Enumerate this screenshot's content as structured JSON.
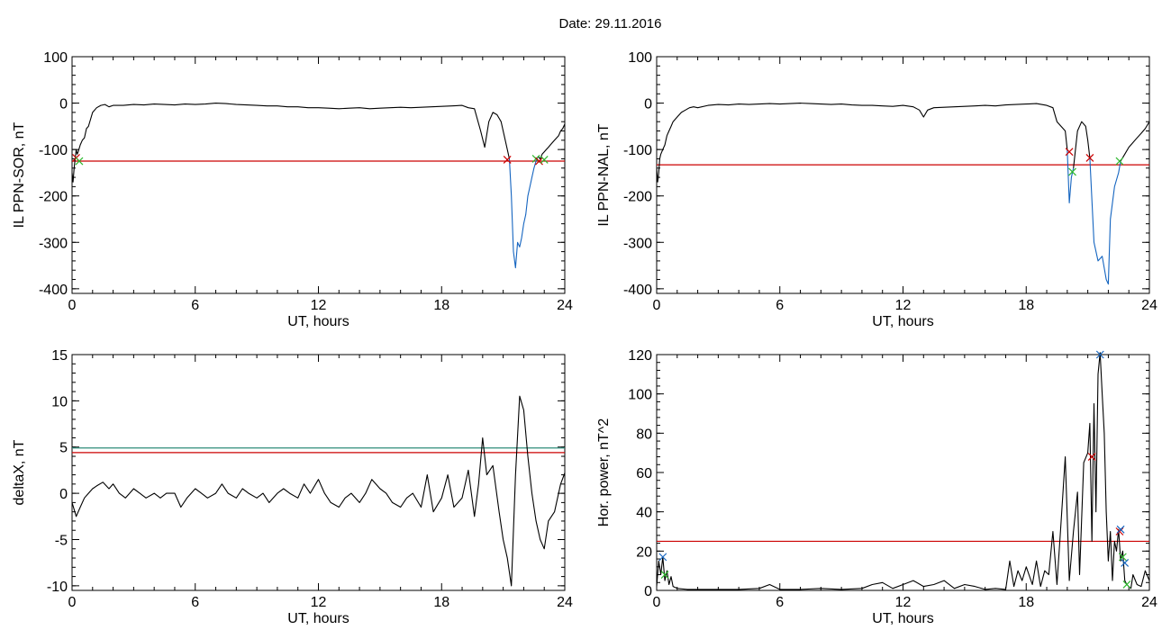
{
  "figure_title": "Date:  29.11.2016",
  "chart_data": [
    {
      "type": "line",
      "ylabel": "IL PPN-SOR, nT",
      "xlabel": "UT, hours",
      "xlim": [
        0,
        24
      ],
      "ylim": [
        -410,
        100
      ],
      "xticks": [
        0,
        6,
        12,
        18,
        24
      ],
      "yticks": [
        100,
        0,
        -100,
        -200,
        -300,
        -400
      ],
      "threshold": -125,
      "series": [
        {
          "color": "#000000",
          "x": [
            0,
            0.05,
            0.1,
            0.15,
            0.2,
            0.25,
            0.3,
            0.4,
            0.5,
            0.6,
            0.7,
            0.8,
            0.9,
            1.0,
            1.2,
            1.4,
            1.6,
            1.8,
            2.0,
            2.5,
            3.0,
            3.5,
            4.0,
            4.5,
            5.0,
            5.5,
            6.0,
            6.5,
            7.0,
            7.5,
            8.0,
            8.5,
            9.0,
            9.5,
            10.0,
            10.5,
            11.0,
            11.5,
            12.0,
            12.5,
            13.0,
            13.5,
            14.0,
            14.5,
            15.0,
            15.5,
            16.0,
            16.5,
            17.0,
            17.5,
            18.0,
            18.5,
            19.0,
            19.3,
            19.6,
            19.9,
            20.1,
            20.3,
            20.5,
            20.7,
            20.9,
            21.1,
            21.3
          ],
          "y": [
            -150,
            -170,
            -140,
            -120,
            -100,
            -110,
            -105,
            -90,
            -80,
            -75,
            -55,
            -50,
            -35,
            -20,
            -10,
            -5,
            -3,
            -8,
            -5,
            -5,
            -3,
            -4,
            -2,
            -3,
            -4,
            -2,
            -3,
            -2,
            0,
            -1,
            -3,
            -4,
            -5,
            -6,
            -6,
            -8,
            -8,
            -10,
            -10,
            -11,
            -12,
            -11,
            -10,
            -12,
            -11,
            -10,
            -9,
            -10,
            -9,
            -8,
            -7,
            -6,
            -5,
            -10,
            -12,
            -60,
            -95,
            -40,
            -20,
            -25,
            -40,
            -80,
            -120
          ]
        },
        {
          "color": "#1565c0",
          "x": [
            21.3,
            21.4,
            21.5,
            21.6,
            21.7,
            21.8,
            21.9,
            22.0,
            22.1,
            22.2,
            22.3,
            22.4,
            22.5,
            22.6,
            22.7
          ],
          "y": [
            -120,
            -200,
            -320,
            -355,
            -300,
            -310,
            -290,
            -260,
            -240,
            -200,
            -180,
            -160,
            -140,
            -125,
            -115
          ]
        },
        {
          "color": "#000000",
          "x": [
            22.7,
            22.8,
            22.9,
            23.0,
            23.1,
            23.2,
            23.3,
            23.4,
            23.5,
            23.6,
            23.7,
            23.8,
            23.9,
            24.0
          ],
          "y": [
            -115,
            -120,
            -110,
            -105,
            -100,
            -95,
            -90,
            -85,
            -80,
            -75,
            -70,
            -60,
            -55,
            -45
          ]
        }
      ],
      "markers": [
        {
          "x": 0.2,
          "y": -118,
          "color": "#cc0000"
        },
        {
          "x": 0.35,
          "y": -125,
          "color": "#2eb82e"
        },
        {
          "x": 21.2,
          "y": -122,
          "color": "#cc0000"
        },
        {
          "x": 22.6,
          "y": -120,
          "color": "#2eb82e"
        },
        {
          "x": 22.75,
          "y": -125,
          "color": "#cc0000"
        },
        {
          "x": 23.0,
          "y": -122,
          "color": "#2eb82e"
        }
      ]
    },
    {
      "type": "line",
      "ylabel": "IL PPN-NAL, nT",
      "xlabel": "UT, hours",
      "xlim": [
        0,
        24
      ],
      "ylim": [
        -410,
        100
      ],
      "xticks": [
        0,
        6,
        12,
        18,
        24
      ],
      "yticks": [
        100,
        0,
        -100,
        -200,
        -300,
        -400
      ],
      "threshold": -133,
      "series": [
        {
          "color": "#000000",
          "x": [
            0,
            0.05,
            0.1,
            0.15,
            0.2,
            0.3,
            0.4,
            0.5,
            0.6,
            0.7,
            0.8,
            1.0,
            1.2,
            1.4,
            1.6,
            1.8,
            2.0,
            2.5,
            3.0,
            3.5,
            4.0,
            4.5,
            5.0,
            5.5,
            6.0,
            6.5,
            7.0,
            7.5,
            8.0,
            8.5,
            9.0,
            9.5,
            10.0,
            10.5,
            11.0,
            11.5,
            12.0,
            12.5,
            12.8,
            13.0,
            13.2,
            13.5,
            14.0,
            14.5,
            15.0,
            15.5,
            16.0,
            16.5,
            17.0,
            17.5,
            18.0,
            18.5,
            19.0,
            19.3,
            19.5,
            19.7,
            19.9,
            20.0
          ],
          "y": [
            -140,
            -170,
            -150,
            -120,
            -110,
            -100,
            -90,
            -70,
            -60,
            -50,
            -40,
            -30,
            -20,
            -15,
            -10,
            -8,
            -10,
            -5,
            -3,
            -4,
            -2,
            -3,
            -2,
            -1,
            -2,
            -1,
            0,
            -1,
            -2,
            -3,
            -2,
            -4,
            -5,
            -5,
            -6,
            -7,
            -5,
            -8,
            -15,
            -30,
            -15,
            -10,
            -9,
            -8,
            -7,
            -6,
            -5,
            -6,
            -4,
            -3,
            -2,
            -1,
            -5,
            -10,
            -40,
            -50,
            -60,
            -100
          ]
        },
        {
          "color": "#1565c0",
          "x": [
            20.0,
            20.1,
            20.2,
            20.3
          ],
          "y": [
            -100,
            -215,
            -160,
            -140
          ]
        },
        {
          "color": "#000000",
          "x": [
            20.3,
            20.5,
            20.7,
            20.9,
            21.0,
            21.1
          ],
          "y": [
            -140,
            -60,
            -40,
            -50,
            -80,
            -118
          ]
        },
        {
          "color": "#1565c0",
          "x": [
            21.1,
            21.3,
            21.5,
            21.7,
            21.9,
            22.0,
            22.1,
            22.3,
            22.5,
            22.6
          ],
          "y": [
            -118,
            -300,
            -340,
            -330,
            -380,
            -390,
            -250,
            -180,
            -150,
            -125
          ]
        },
        {
          "color": "#000000",
          "x": [
            22.6,
            22.8,
            23.0,
            23.2,
            23.4,
            23.6,
            23.8,
            24.0
          ],
          "y": [
            -125,
            -110,
            -95,
            -85,
            -75,
            -65,
            -55,
            -40
          ]
        }
      ],
      "markers": [
        {
          "x": 20.1,
          "y": -105,
          "color": "#cc0000"
        },
        {
          "x": 20.25,
          "y": -148,
          "color": "#2eb82e"
        },
        {
          "x": 21.1,
          "y": -118,
          "color": "#cc0000"
        },
        {
          "x": 22.55,
          "y": -125,
          "color": "#2eb82e"
        }
      ]
    },
    {
      "type": "line",
      "ylabel": "deltaX, nT",
      "xlabel": "UT, hours",
      "xlim": [
        0,
        24
      ],
      "ylim": [
        -10.5,
        15
      ],
      "xticks": [
        0,
        6,
        12,
        18,
        24
      ],
      "yticks": [
        15,
        10,
        5,
        0,
        -5,
        -10
      ],
      "thresholds": [
        {
          "value": 4.9,
          "color": "#2e8b7a"
        },
        {
          "value": 4.4,
          "color": "#cc0000"
        }
      ],
      "series": [
        {
          "color": "#000000",
          "x": [
            0,
            0.2,
            0.4,
            0.6,
            0.8,
            1.0,
            1.2,
            1.5,
            1.8,
            2.0,
            2.3,
            2.6,
            3.0,
            3.3,
            3.6,
            4.0,
            4.3,
            4.6,
            5.0,
            5.3,
            5.6,
            6.0,
            6.3,
            6.6,
            7.0,
            7.3,
            7.6,
            8.0,
            8.3,
            8.6,
            9.0,
            9.3,
            9.6,
            10.0,
            10.3,
            10.6,
            11.0,
            11.3,
            11.6,
            12.0,
            12.3,
            12.6,
            13.0,
            13.3,
            13.6,
            14.0,
            14.3,
            14.6,
            15.0,
            15.3,
            15.6,
            16.0,
            16.3,
            16.6,
            17.0,
            17.3,
            17.6,
            18.0,
            18.3,
            18.6,
            19.0,
            19.3,
            19.6,
            19.8,
            20.0,
            20.2,
            20.5,
            20.8,
            21.0,
            21.2,
            21.4,
            21.6,
            21.8,
            22.0,
            22.2,
            22.4,
            22.6,
            22.8,
            23.0,
            23.2,
            23.5,
            23.8,
            24.0
          ],
          "y": [
            -1,
            -2.5,
            -1.5,
            -0.5,
            0,
            0.5,
            0.8,
            1.2,
            0.5,
            1.0,
            0,
            -0.5,
            0.5,
            0,
            -0.5,
            0,
            -0.5,
            0,
            0,
            -1.5,
            -0.5,
            0.5,
            0,
            -0.5,
            0,
            1,
            0,
            -0.5,
            0.5,
            0,
            -0.5,
            0,
            -1,
            0,
            0.5,
            0,
            -0.5,
            1,
            0,
            1.5,
            0,
            -1,
            -1.5,
            -0.5,
            0,
            -1,
            0,
            1.5,
            0.5,
            0,
            -1,
            -1.5,
            -0.5,
            0,
            -1.5,
            2,
            -2,
            -0.5,
            2,
            -1.5,
            -0.5,
            2.5,
            -2.5,
            1,
            6,
            2,
            3,
            -2,
            -5,
            -7,
            -10,
            2,
            10.5,
            9,
            4,
            0,
            -3,
            -5,
            -6,
            -3,
            -2,
            1,
            2.2
          ]
        }
      ],
      "markers": []
    },
    {
      "type": "line",
      "ylabel": "Hor. power, nT^2",
      "xlabel": "UT, hours",
      "xlim": [
        0,
        24
      ],
      "ylim": [
        0,
        120
      ],
      "xticks": [
        0,
        6,
        12,
        18,
        24
      ],
      "yticks": [
        120,
        100,
        80,
        60,
        40,
        20,
        0
      ],
      "threshold": 25,
      "series": [
        {
          "color": "#000000",
          "x": [
            0,
            0.1,
            0.2,
            0.3,
            0.4,
            0.5,
            0.6,
            0.7,
            0.8,
            1.0,
            1.5,
            2.0,
            3.0,
            4.0,
            5.0,
            5.5,
            6.0,
            7.0,
            8.0,
            9.0,
            10.0,
            10.5,
            11.0,
            11.5,
            12.0,
            12.5,
            13.0,
            13.5,
            14.0,
            14.5,
            15.0,
            15.5,
            16.0,
            16.5,
            17.0,
            17.2,
            17.4,
            17.6,
            17.8,
            18.0,
            18.3,
            18.5,
            18.7,
            18.9,
            19.1,
            19.3,
            19.5,
            19.7,
            19.9,
            20.1,
            20.3,
            20.5,
            20.6,
            20.8,
            21.0,
            21.1,
            21.2,
            21.3,
            21.4,
            21.5,
            21.6,
            21.7,
            21.8,
            21.9,
            22.0,
            22.1,
            22.2,
            22.3,
            22.4,
            22.5,
            22.6,
            22.7,
            22.8,
            22.9,
            23.0,
            23.1,
            23.2,
            23.4,
            23.6,
            23.8,
            24.0
          ],
          "y": [
            2,
            15,
            8,
            17,
            5,
            10,
            3,
            7,
            2,
            1,
            0.5,
            0.5,
            0.5,
            0.5,
            1,
            3,
            0.5,
            0.5,
            1,
            0.5,
            1,
            3,
            4,
            1,
            3,
            5,
            2,
            3,
            5,
            1,
            3,
            2,
            0.5,
            1,
            0.5,
            15,
            2,
            10,
            5,
            12,
            3,
            15,
            2,
            10,
            8,
            30,
            3,
            35,
            68,
            5,
            30,
            50,
            8,
            65,
            70,
            85,
            25,
            95,
            40,
            110,
            121,
            100,
            80,
            40,
            15,
            30,
            5,
            25,
            20,
            31,
            15,
            20,
            5,
            3,
            2,
            1,
            8,
            3,
            2,
            10,
            5
          ]
        }
      ],
      "markers": [
        {
          "x": 0.3,
          "y": 17,
          "color": "#1565c0"
        },
        {
          "x": 0.4,
          "y": 8,
          "color": "#2eb82e"
        },
        {
          "x": 21.2,
          "y": 68,
          "color": "#cc0000"
        },
        {
          "x": 21.6,
          "y": 120,
          "color": "#1565c0"
        },
        {
          "x": 22.55,
          "y": 30,
          "color": "#cc0000"
        },
        {
          "x": 22.6,
          "y": 31,
          "color": "#1565c0"
        },
        {
          "x": 22.7,
          "y": 17,
          "color": "#2eb82e"
        },
        {
          "x": 22.8,
          "y": 14,
          "color": "#1565c0"
        },
        {
          "x": 22.9,
          "y": 3,
          "color": "#2eb82e"
        }
      ]
    }
  ]
}
